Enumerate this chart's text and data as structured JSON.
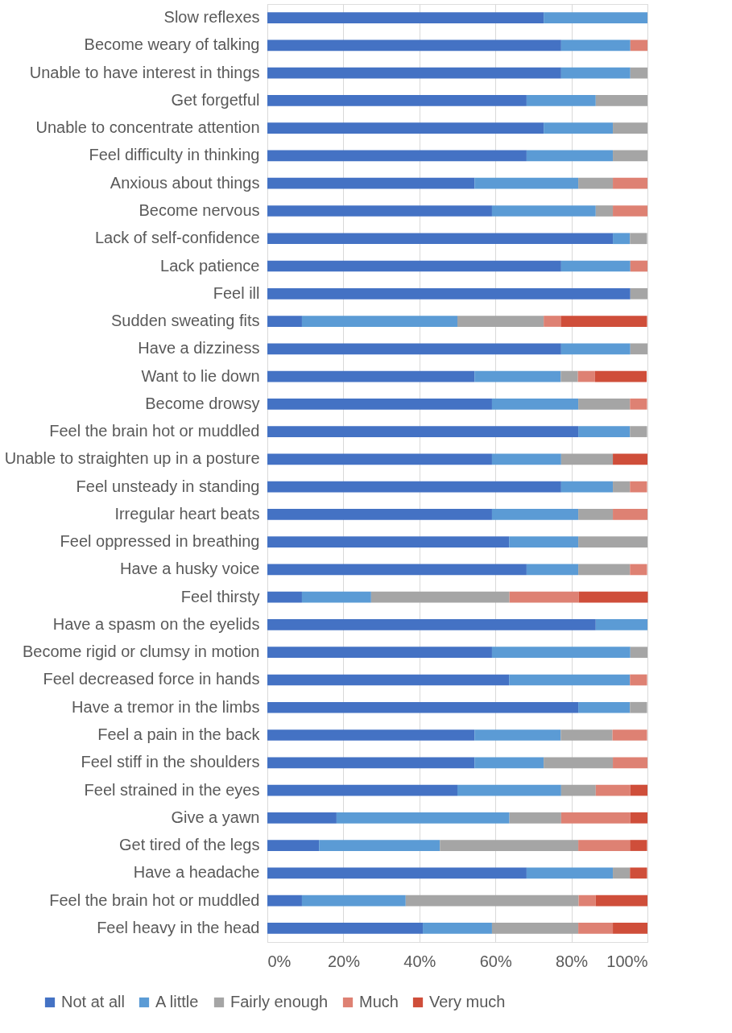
{
  "chart_data": {
    "type": "bar",
    "orientation": "horizontal",
    "stacked": true,
    "categories": [
      "Slow reflexes",
      "Become weary of talking",
      "Unable to have interest in things",
      "Get forgetful",
      "Unable to concentrate attention",
      "Feel difficulty in thinking",
      "Anxious about things",
      "Become nervous",
      "Lack of self-confidence",
      "Lack patience",
      "Feel ill",
      "Sudden sweating fits",
      "Have a dizziness",
      "Want to lie down",
      "Become drowsy",
      "Feel the brain hot or muddled",
      "Unable to straighten up in a posture",
      "Feel unsteady in standing",
      "Irregular heart beats",
      "Feel oppressed in breathing",
      "Have a husky voice",
      "Feel thirsty",
      "Have a spasm on the eyelids",
      "Become rigid or clumsy in motion",
      "Feel decreased force in hands",
      "Have a tremor in the limbs",
      "Feel a pain in the back",
      "Feel stiff in the shoulders",
      "Feel strained in the eyes",
      "Give a yawn",
      "Get tired of the legs",
      "Have a headache",
      "Feel the brain hot or muddled",
      "Feel heavy in the head"
    ],
    "series": [
      {
        "name": "Not at all",
        "color": "#4472c4",
        "values": [
          72.7,
          77.3,
          77.3,
          68.2,
          72.7,
          68.2,
          54.5,
          59.1,
          90.9,
          77.3,
          95.5,
          9.1,
          77.3,
          54.5,
          59.1,
          81.8,
          59.1,
          77.3,
          59.1,
          63.6,
          68.2,
          9.1,
          86.4,
          59.1,
          63.6,
          81.8,
          54.5,
          54.5,
          50.0,
          18.2,
          13.6,
          68.2,
          9.1,
          40.9
        ]
      },
      {
        "name": "A little",
        "color": "#5b9bd5",
        "values": [
          27.3,
          18.2,
          18.2,
          18.2,
          18.2,
          22.7,
          27.3,
          27.3,
          4.5,
          18.2,
          0,
          40.9,
          18.2,
          22.7,
          22.7,
          13.6,
          18.2,
          13.6,
          22.7,
          18.2,
          13.6,
          18.2,
          13.6,
          36.4,
          31.8,
          13.6,
          22.7,
          18.2,
          27.3,
          45.5,
          31.8,
          22.7,
          27.3,
          18.2
        ]
      },
      {
        "name": "Fairly enough",
        "color": "#a5a5a5",
        "values": [
          0,
          0,
          4.5,
          13.6,
          9.1,
          9.1,
          9.1,
          4.5,
          4.5,
          0,
          4.5,
          22.7,
          4.5,
          4.5,
          13.6,
          4.5,
          13.6,
          4.5,
          9.1,
          18.2,
          13.6,
          36.4,
          0,
          4.5,
          0,
          4.5,
          13.6,
          18.2,
          9.1,
          13.6,
          36.4,
          4.5,
          45.5,
          22.7
        ]
      },
      {
        "name": "Much",
        "color": "#de8173",
        "values": [
          0,
          4.5,
          0,
          0,
          0,
          0,
          9.1,
          9.1,
          0,
          4.5,
          0,
          4.5,
          0,
          4.5,
          4.5,
          0,
          0,
          4.5,
          9.1,
          0,
          4.5,
          18.2,
          0,
          0,
          4.5,
          0,
          9.1,
          9.1,
          9.1,
          18.2,
          13.6,
          0,
          4.5,
          9.1
        ]
      },
      {
        "name": "Very much",
        "color": "#cf4e3a",
        "values": [
          0,
          0,
          0,
          0,
          0,
          0,
          0,
          0,
          0,
          0,
          0,
          22.7,
          0,
          13.6,
          0,
          0,
          9.1,
          0,
          0,
          0,
          0,
          18.2,
          0,
          0,
          0,
          0,
          0,
          0,
          4.5,
          4.5,
          4.5,
          4.5,
          13.6,
          9.1
        ]
      }
    ],
    "xlim": [
      0,
      100
    ],
    "xticks": [
      {
        "value": 0,
        "label": "0%"
      },
      {
        "value": 20,
        "label": "20%"
      },
      {
        "value": 40,
        "label": "40%"
      },
      {
        "value": 60,
        "label": "60%"
      },
      {
        "value": 80,
        "label": "80%"
      },
      {
        "value": 100,
        "label": "100%"
      }
    ],
    "grid": "x",
    "legend": "bottom"
  }
}
